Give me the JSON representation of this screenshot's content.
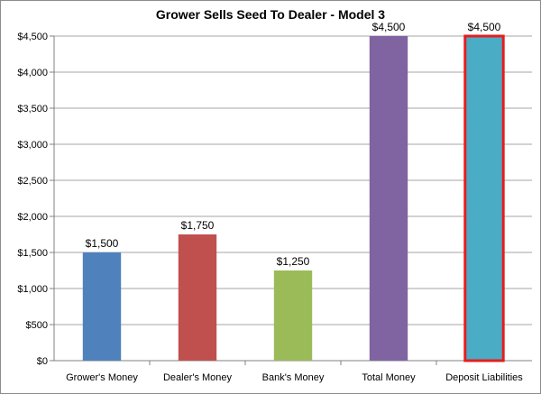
{
  "chart_data": {
    "type": "bar",
    "title": "Grower Sells Seed To Dealer - Model 3",
    "categories": [
      "Grower's Money",
      "Dealer's Money",
      "Bank's Money",
      "Total Money",
      "Deposit Liabilities"
    ],
    "values": [
      1500,
      1750,
      1250,
      4500,
      4500
    ],
    "value_labels": [
      "$1,500",
      "$1,750",
      "$1,250",
      "$4,500",
      "$4,500"
    ],
    "colors": [
      "#4f81bd",
      "#c0504d",
      "#9bbb59",
      "#8064a2",
      "#4bacc6"
    ],
    "highlight": {
      "index": 4,
      "outline_color": "#e41e1e"
    },
    "ylim": [
      0,
      4500
    ],
    "yticks": [
      0,
      500,
      1000,
      1500,
      2000,
      2500,
      3000,
      3500,
      4000,
      4500
    ],
    "ytick_labels": [
      "$0",
      "$500",
      "$1,000",
      "$1,500",
      "$2,000",
      "$2,500",
      "$3,000",
      "$3,500",
      "$4,000",
      "$4,500"
    ],
    "grid": true,
    "legend": "none"
  }
}
